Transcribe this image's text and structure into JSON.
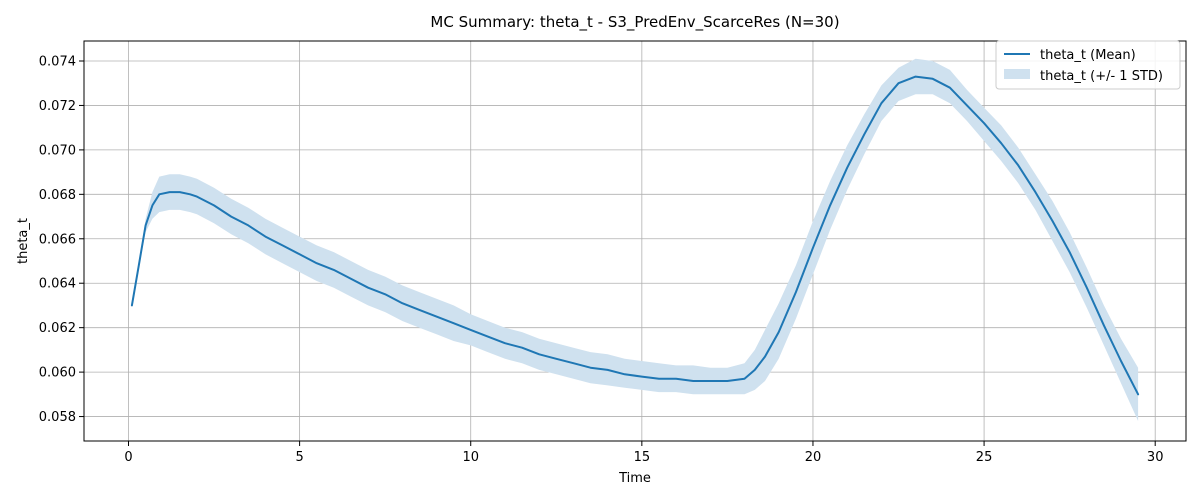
{
  "chart_data": {
    "type": "line",
    "title": "MC Summary: theta_t - S3_PredEnv_ScarceRes (N=30)",
    "xlabel": "Time",
    "ylabel": "theta_t",
    "xlim": [
      -1.3,
      30.9
    ],
    "ylim": [
      0.0569,
      0.0749
    ],
    "xticks": [
      0,
      5,
      10,
      15,
      20,
      25,
      30
    ],
    "yticks": [
      0.058,
      0.06,
      0.062,
      0.064,
      0.066,
      0.068,
      0.07,
      0.072,
      0.074
    ],
    "ytick_labels": [
      "0.058",
      "0.060",
      "0.062",
      "0.064",
      "0.066",
      "0.068",
      "0.070",
      "0.072",
      "0.074"
    ],
    "grid": true,
    "legend_position": "top-right",
    "colors": {
      "mean": "#1f77b4",
      "band": "#cfe1ef"
    },
    "series": [
      {
        "name": "theta_t (Mean)",
        "x": [
          0.1,
          0.3,
          0.5,
          0.7,
          0.9,
          1.2,
          1.5,
          1.8,
          2.0,
          2.5,
          3.0,
          3.5,
          4.0,
          4.5,
          5.0,
          5.5,
          6.0,
          6.5,
          7.0,
          7.5,
          8.0,
          8.5,
          9.0,
          9.5,
          10.0,
          10.5,
          11.0,
          11.5,
          12.0,
          12.5,
          13.0,
          13.5,
          14.0,
          14.5,
          15.0,
          15.5,
          16.0,
          16.5,
          17.0,
          17.5,
          18.0,
          18.3,
          18.6,
          19.0,
          19.5,
          20.0,
          20.5,
          21.0,
          21.5,
          22.0,
          22.5,
          23.0,
          23.5,
          24.0,
          24.5,
          25.0,
          25.5,
          26.0,
          26.5,
          27.0,
          27.5,
          28.0,
          28.5,
          29.0,
          29.5
        ],
        "y": [
          0.063,
          0.0648,
          0.0666,
          0.0675,
          0.068,
          0.0681,
          0.0681,
          0.068,
          0.0679,
          0.0675,
          0.067,
          0.0666,
          0.0661,
          0.0657,
          0.0653,
          0.0649,
          0.0646,
          0.0642,
          0.0638,
          0.0635,
          0.0631,
          0.0628,
          0.0625,
          0.0622,
          0.0619,
          0.0616,
          0.0613,
          0.0611,
          0.0608,
          0.0606,
          0.0604,
          0.0602,
          0.0601,
          0.0599,
          0.0598,
          0.0597,
          0.0597,
          0.0596,
          0.0596,
          0.0596,
          0.0597,
          0.0601,
          0.0607,
          0.0618,
          0.0636,
          0.0656,
          0.0675,
          0.0692,
          0.0707,
          0.0721,
          0.073,
          0.0733,
          0.0732,
          0.0728,
          0.072,
          0.0712,
          0.0703,
          0.0693,
          0.0681,
          0.0668,
          0.0654,
          0.0638,
          0.0621,
          0.0605,
          0.059
        ]
      },
      {
        "name": "theta_t (+/- 1 STD)",
        "x": [
          0.1,
          0.3,
          0.5,
          0.7,
          0.9,
          1.2,
          1.5,
          1.8,
          2.0,
          2.5,
          3.0,
          3.5,
          4.0,
          4.5,
          5.0,
          5.5,
          6.0,
          6.5,
          7.0,
          7.5,
          8.0,
          8.5,
          9.0,
          9.5,
          10.0,
          10.5,
          11.0,
          11.5,
          12.0,
          12.5,
          13.0,
          13.5,
          14.0,
          14.5,
          15.0,
          15.5,
          16.0,
          16.5,
          17.0,
          17.5,
          18.0,
          18.3,
          18.6,
          19.0,
          19.5,
          20.0,
          20.5,
          21.0,
          21.5,
          22.0,
          22.5,
          23.0,
          23.5,
          24.0,
          24.5,
          25.0,
          25.5,
          26.0,
          26.5,
          27.0,
          27.5,
          28.0,
          28.5,
          29.0,
          29.5
        ],
        "lower": [
          0.063,
          0.0647,
          0.0663,
          0.0669,
          0.0672,
          0.0673,
          0.0673,
          0.0672,
          0.0671,
          0.0667,
          0.0662,
          0.0658,
          0.0653,
          0.0649,
          0.0645,
          0.0641,
          0.0638,
          0.0634,
          0.063,
          0.0627,
          0.0623,
          0.062,
          0.0617,
          0.0614,
          0.0612,
          0.0609,
          0.0606,
          0.0604,
          0.0601,
          0.0599,
          0.0597,
          0.0595,
          0.0594,
          0.0593,
          0.0592,
          0.0591,
          0.0591,
          0.059,
          0.059,
          0.059,
          0.059,
          0.0592,
          0.0596,
          0.0606,
          0.0624,
          0.0644,
          0.0664,
          0.0682,
          0.0698,
          0.0713,
          0.0722,
          0.0725,
          0.0725,
          0.0721,
          0.0713,
          0.0704,
          0.0695,
          0.0685,
          0.0673,
          0.0659,
          0.0645,
          0.0629,
          0.0612,
          0.0595,
          0.0578
        ],
        "upper": [
          0.063,
          0.0649,
          0.0669,
          0.0681,
          0.0688,
          0.0689,
          0.0689,
          0.0688,
          0.0687,
          0.0683,
          0.0678,
          0.0674,
          0.0669,
          0.0665,
          0.0661,
          0.0657,
          0.0654,
          0.065,
          0.0646,
          0.0643,
          0.0639,
          0.0636,
          0.0633,
          0.063,
          0.0626,
          0.0623,
          0.062,
          0.0618,
          0.0615,
          0.0613,
          0.0611,
          0.0609,
          0.0608,
          0.0606,
          0.0605,
          0.0604,
          0.0603,
          0.0603,
          0.0602,
          0.0602,
          0.0604,
          0.061,
          0.0619,
          0.0631,
          0.0648,
          0.0668,
          0.0686,
          0.0702,
          0.0716,
          0.0729,
          0.0737,
          0.0741,
          0.074,
          0.0736,
          0.0727,
          0.0719,
          0.0711,
          0.0701,
          0.0689,
          0.0677,
          0.0663,
          0.0647,
          0.063,
          0.0615,
          0.0602
        ]
      }
    ]
  }
}
